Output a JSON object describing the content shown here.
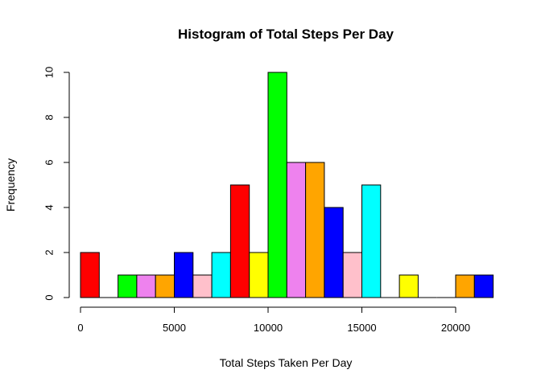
{
  "chart_data": {
    "type": "bar",
    "title": "Histogram of Total Steps Per Day",
    "xlabel": "Total Steps Taken Per Day",
    "ylabel": "Frequency",
    "xlim": [
      0,
      22000
    ],
    "ylim": [
      0,
      10
    ],
    "x_ticks": [
      0,
      5000,
      10000,
      15000,
      20000
    ],
    "y_ticks": [
      0,
      2,
      4,
      6,
      8,
      10
    ],
    "bin_width": 1000,
    "bin_starts": [
      0,
      1000,
      2000,
      3000,
      4000,
      5000,
      6000,
      7000,
      8000,
      9000,
      10000,
      11000,
      12000,
      13000,
      14000,
      15000,
      16000,
      17000,
      18000,
      19000,
      20000,
      21000
    ],
    "values": [
      2,
      0,
      1,
      1,
      1,
      2,
      1,
      2,
      5,
      2,
      10,
      6,
      6,
      4,
      2,
      5,
      0,
      1,
      0,
      0,
      1,
      1
    ],
    "colors": [
      "#ff0000",
      "#ffff00",
      "#00ff00",
      "#ee82ee",
      "#ffa500",
      "#0000ff",
      "#ffc0cb",
      "#00ffff",
      "#ff0000",
      "#ffff00",
      "#00ff00",
      "#ee82ee",
      "#ffa500",
      "#0000ff",
      "#ffc0cb",
      "#00ffff",
      "#ff0000",
      "#ffff00",
      "#00ff00",
      "#ee82ee",
      "#ffa500",
      "#0000ff"
    ],
    "grid": false,
    "legend": "none"
  }
}
